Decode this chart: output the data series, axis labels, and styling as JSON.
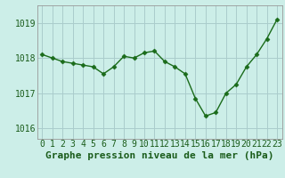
{
  "x": [
    0,
    1,
    2,
    3,
    4,
    5,
    6,
    7,
    8,
    9,
    10,
    11,
    12,
    13,
    14,
    15,
    16,
    17,
    18,
    19,
    20,
    21,
    22,
    23
  ],
  "y": [
    1018.1,
    1018.0,
    1017.9,
    1017.85,
    1017.8,
    1017.75,
    1017.55,
    1017.75,
    1018.05,
    1018.0,
    1018.15,
    1018.2,
    1017.9,
    1017.75,
    1017.55,
    1016.85,
    1016.35,
    1016.45,
    1017.0,
    1017.25,
    1017.75,
    1018.1,
    1018.55,
    1019.1
  ],
  "line_color": "#1a6b1a",
  "marker": "D",
  "marker_size": 2.5,
  "bg_color": "#cceee8",
  "grid_color": "#aacccc",
  "title": "Graphe pression niveau de la mer (hPa)",
  "ylabel_ticks": [
    1016,
    1017,
    1018,
    1019
  ],
  "xlim": [
    -0.5,
    23.5
  ],
  "ylim": [
    1015.7,
    1019.5
  ],
  "title_fontsize": 8,
  "tick_fontsize": 7
}
